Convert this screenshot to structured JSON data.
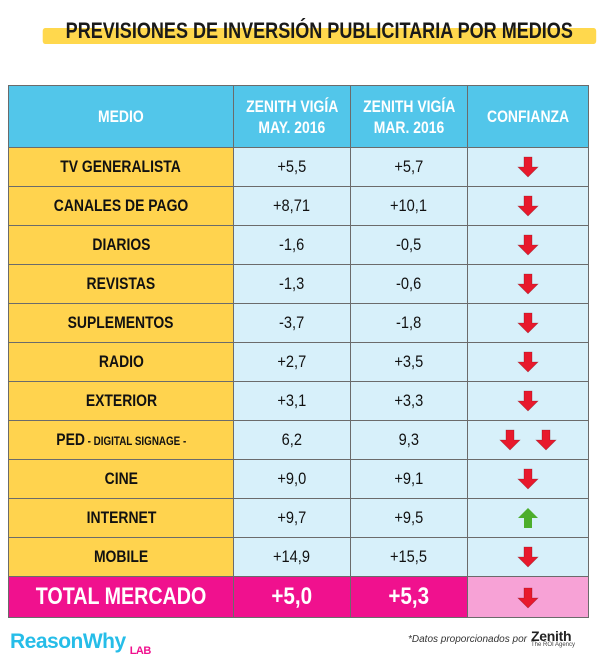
{
  "title": "PREVISIONES DE INVERSIÓN PUBLICITARIA POR MEDIOS",
  "headers": {
    "medio": "MEDIO",
    "col1_line1": "ZENITH VIGÍA",
    "col1_line2": "MAY. 2016",
    "col2_line1": "ZENITH VIGÍA",
    "col2_line2": "MAR. 2016",
    "confianza": "CONFIANZA"
  },
  "rows": [
    {
      "medio": "TV GENERALISTA",
      "sub": "",
      "may": "+5,5",
      "mar": "+5,7",
      "confianza": [
        "down"
      ]
    },
    {
      "medio": "CANALES DE PAGO",
      "sub": "",
      "may": "+8,71",
      "mar": "+10,1",
      "confianza": [
        "down"
      ]
    },
    {
      "medio": "DIARIOS",
      "sub": "",
      "may": "-1,6",
      "mar": "-0,5",
      "confianza": [
        "down"
      ]
    },
    {
      "medio": "REVISTAS",
      "sub": "",
      "may": "-1,3",
      "mar": "-0,6",
      "confianza": [
        "down"
      ]
    },
    {
      "medio": "SUPLEMENTOS",
      "sub": "",
      "may": "-3,7",
      "mar": "-1,8",
      "confianza": [
        "down"
      ]
    },
    {
      "medio": "RADIO",
      "sub": "",
      "may": "+2,7",
      "mar": "+3,5",
      "confianza": [
        "down"
      ]
    },
    {
      "medio": "EXTERIOR",
      "sub": "",
      "may": "+3,1",
      "mar": "+3,3",
      "confianza": [
        "down"
      ]
    },
    {
      "medio": "PED",
      "sub": " - DIGITAL SIGNAGE -",
      "may": "6,2",
      "mar": "9,3",
      "confianza": [
        "down",
        "down"
      ]
    },
    {
      "medio": "CINE",
      "sub": "",
      "may": "+9,0",
      "mar": "+9,1",
      "confianza": [
        "down"
      ]
    },
    {
      "medio": "INTERNET",
      "sub": "",
      "may": "+9,7",
      "mar": "+9,5",
      "confianza": [
        "up"
      ]
    },
    {
      "medio": "MOBILE",
      "sub": "",
      "may": "+14,9",
      "mar": "+15,5",
      "confianza": [
        "down"
      ]
    }
  ],
  "total": {
    "medio": "TOTAL MERCADO",
    "may": "+5,0",
    "mar": "+5,3",
    "confianza": [
      "down"
    ]
  },
  "footer": {
    "brand": "ReasonWhy",
    "brand_suffix": "LAB",
    "credit": "*Datos proporcionados por",
    "zenith": "Zenith",
    "zenith_tagline": "The ROI Agency"
  },
  "colors": {
    "header": "#52c6ea",
    "label_bg": "#ffd34e",
    "value_bg": "#d7f0fa",
    "total_bg": "#f0118e",
    "total_conf_bg": "#f7a2d6",
    "arrow_down": "#e8192c",
    "arrow_up": "#4cae2c"
  },
  "icons": {
    "down": "arrow-down-icon",
    "up": "arrow-up-icon"
  }
}
